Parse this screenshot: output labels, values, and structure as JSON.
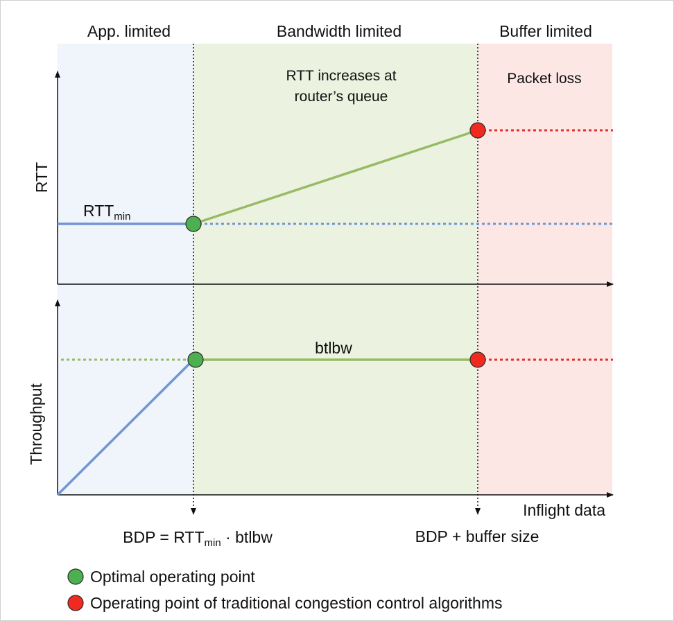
{
  "regions": {
    "app_limited": "App. limited",
    "bandwidth_limited": "Bandwidth limited",
    "buffer_limited": "Buffer limited"
  },
  "annotations": {
    "rtt_increase_line1": "RTT increases at",
    "rtt_increase_line2": "router’s queue",
    "packet_loss": "Packet loss",
    "rtt_min_base": "RTT",
    "rtt_min_sub": "min",
    "btlbw": "btlbw"
  },
  "axes": {
    "rtt_label": "RTT",
    "throughput_label": "Throughput",
    "x_label": "Inflight data"
  },
  "markers": {
    "bdp_prefix": "BDP = RTT",
    "bdp_sub": "min",
    "bdp_suffix": " · btlbw",
    "bdp_buffer": "BDP + buffer size"
  },
  "legend": [
    {
      "label": "Optimal operating point",
      "color": "#4caf50"
    },
    {
      "label": "Operating point of traditional congestion control algorithms",
      "color": "#f02a1f"
    }
  ],
  "colors": {
    "app_region": "#f0f4fb",
    "bandwidth_region": "#ecf2e0",
    "buffer_region": "#fce7e5",
    "blue_line": "#7196d6",
    "green_line": "#97bb64",
    "red_dash": "#e2302a",
    "green_point": "#4caf50",
    "red_point": "#f02a1f"
  }
}
